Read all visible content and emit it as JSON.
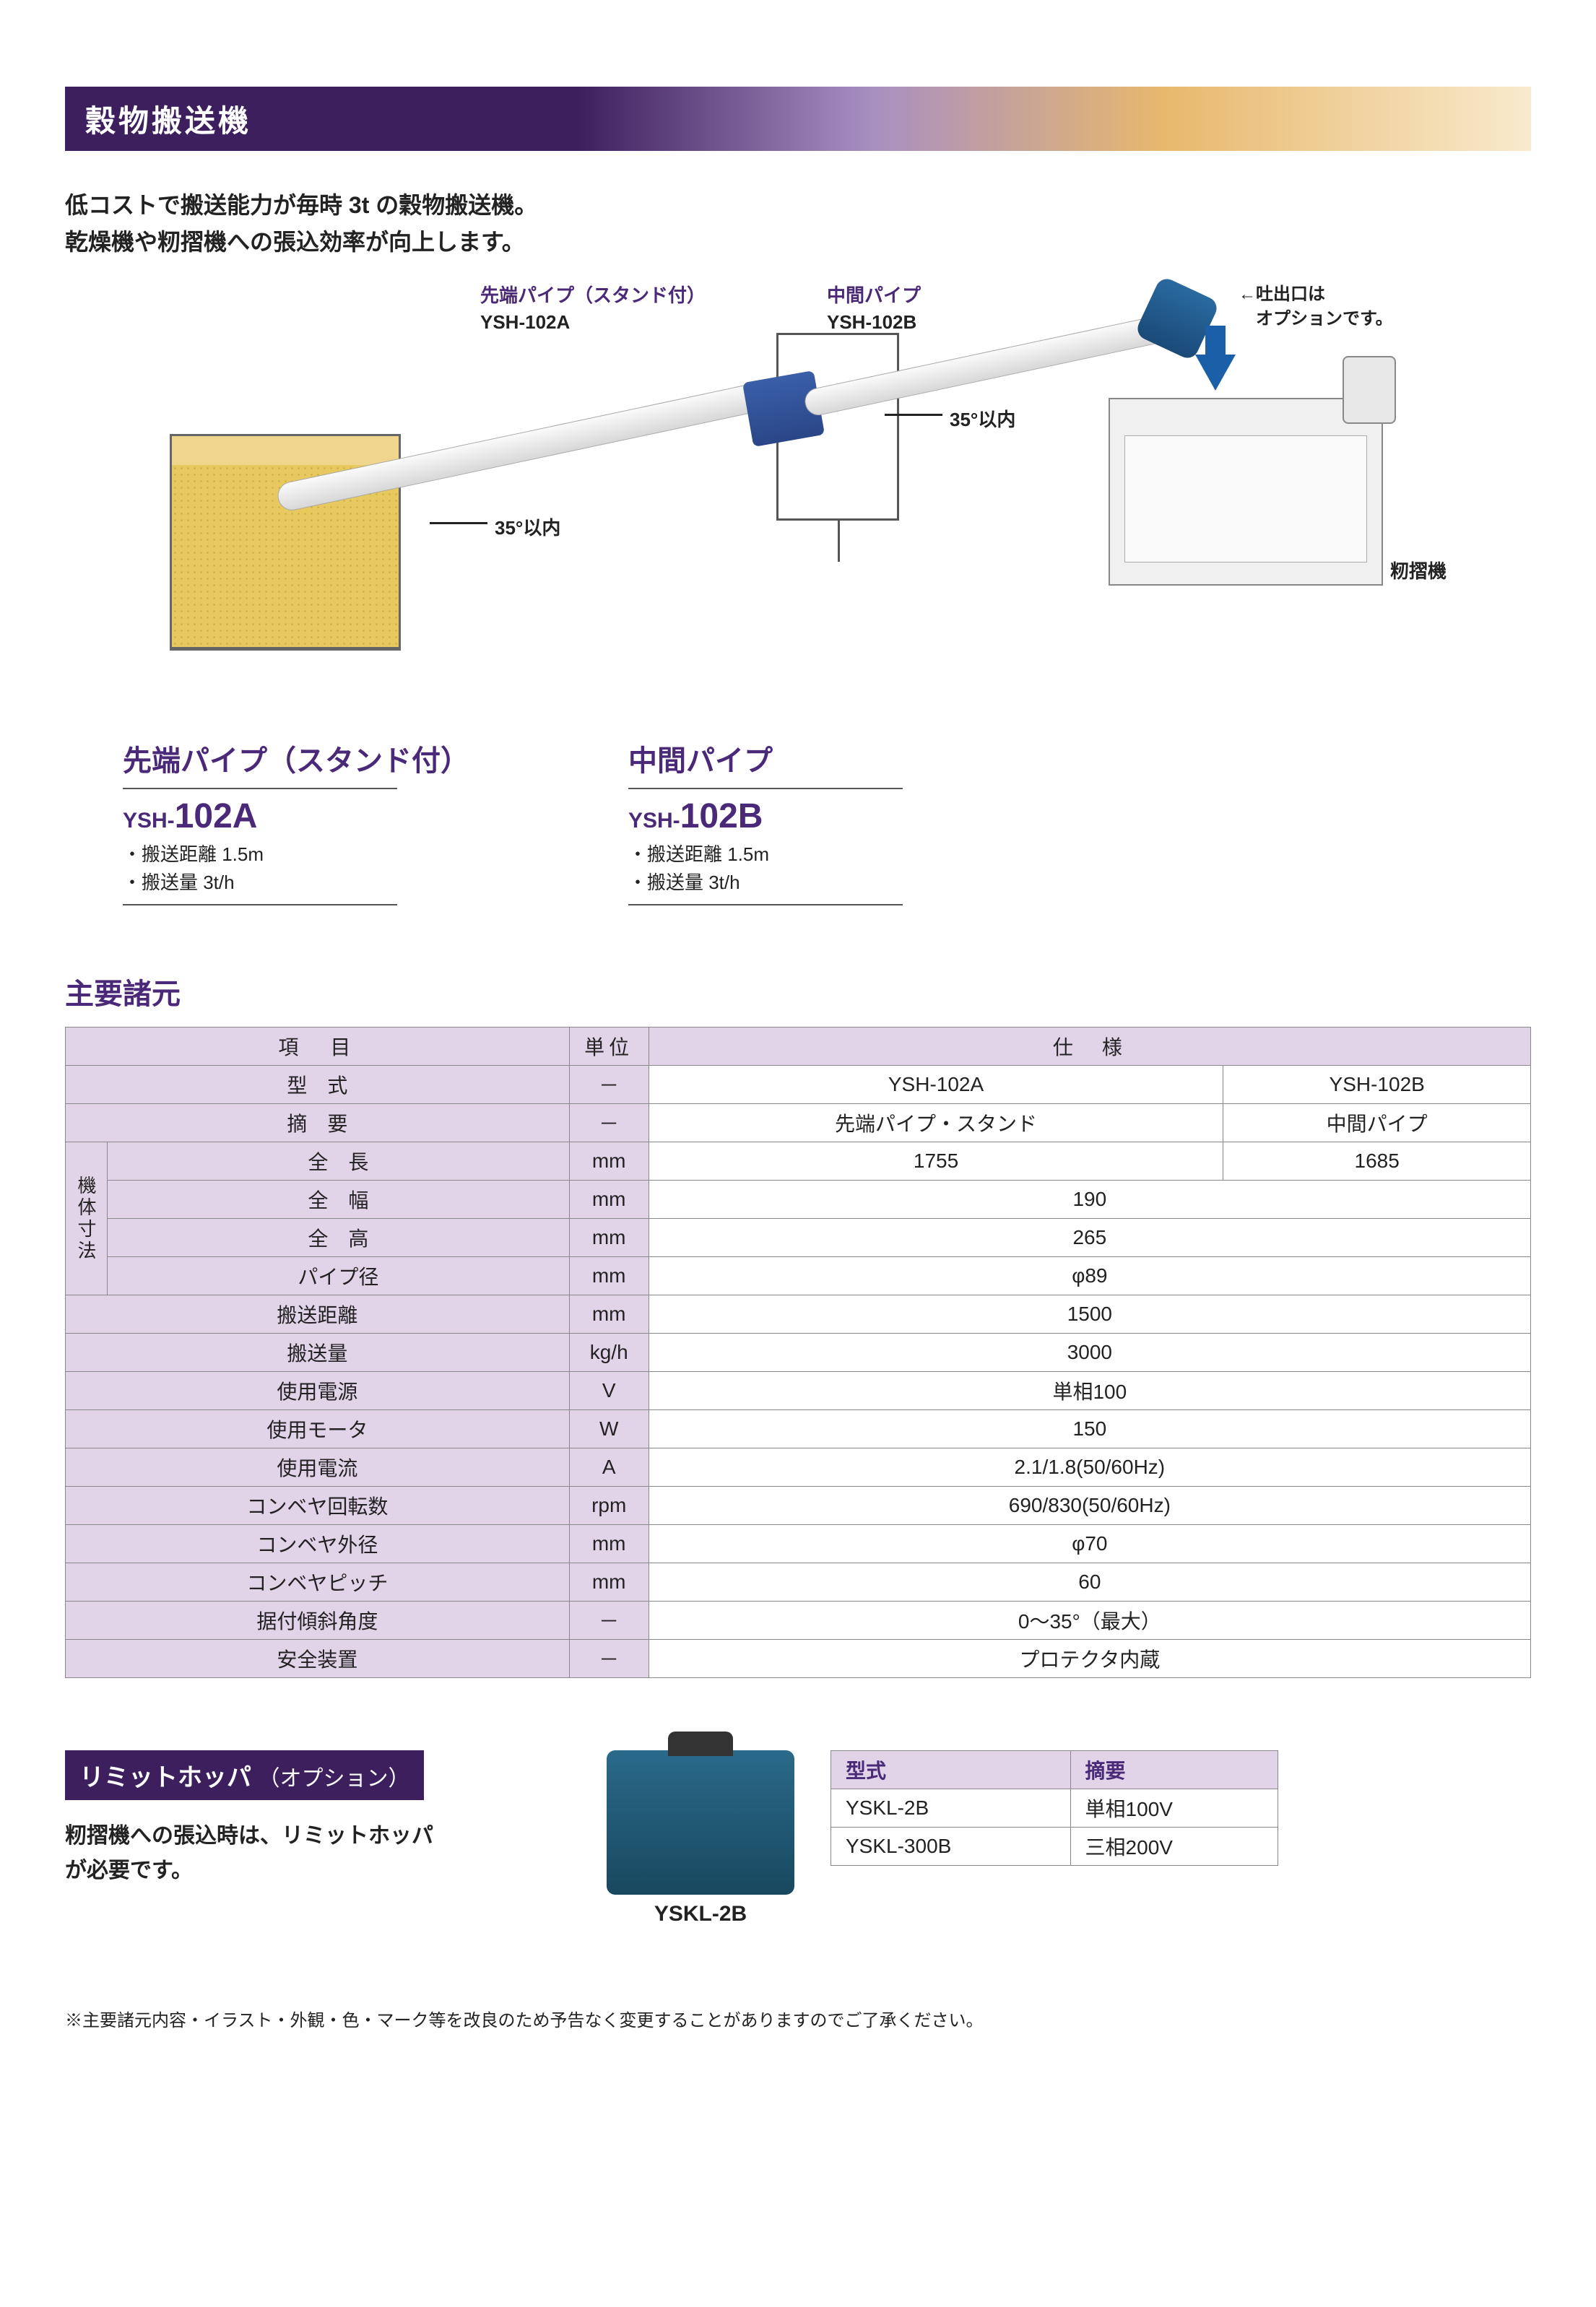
{
  "colors": {
    "brand_purple": "#3d1f5e",
    "text_purple": "#4a2a78",
    "header_gradient": [
      "#3d1f5e",
      "#a88fc2",
      "#e8b86d",
      "#f8eacc"
    ],
    "table_header_bg": "#e2d4e8",
    "border": "#888888",
    "machine_blue": "#1a5fa8",
    "grain": "#e8c95e"
  },
  "header": {
    "title": "穀物搬送機"
  },
  "intro": {
    "line1": "低コストで搬送能力が毎時 3t の穀物搬送機。",
    "line2": "乾燥機や籾摺機への張込効率が向上します。"
  },
  "diagram": {
    "label_a_title": "先端パイプ（スタンド付）",
    "label_a_model": "YSH-102A",
    "label_b_title": "中間パイプ",
    "label_b_model": "YSH-102B",
    "angle_a": "35°以内",
    "angle_b": "35°以内",
    "outlet_note1": "←吐出口は",
    "outlet_note2": "　オプションです。",
    "machine_label": "籾摺機"
  },
  "products": {
    "a": {
      "title": "先端パイプ（スタンド付）",
      "prefix": "YSH-",
      "model": "102A",
      "spec1": "・搬送距離 1.5m",
      "spec2": "・搬送量 3t/h"
    },
    "b": {
      "title": "中間パイプ",
      "prefix": "YSH-",
      "model": "102B",
      "spec1": "・搬送距離 1.5m",
      "spec2": "・搬送量 3t/h"
    }
  },
  "spec_section": {
    "title": "主要諸元"
  },
  "spec_table": {
    "head_item": "項　目",
    "head_unit": "単位",
    "head_spec": "仕　様",
    "dim_group": "機体寸法",
    "rows": {
      "model": {
        "label": "型　式",
        "unit": "－",
        "a": "YSH-102A",
        "b": "YSH-102B"
      },
      "desc": {
        "label": "摘　要",
        "unit": "－",
        "a": "先端パイプ・スタンド",
        "b": "中間パイプ"
      },
      "length": {
        "label": "全　長",
        "unit": "mm",
        "a": "1755",
        "b": "1685"
      },
      "width": {
        "label": "全　幅",
        "unit": "mm",
        "ab": "190"
      },
      "height": {
        "label": "全　高",
        "unit": "mm",
        "ab": "265"
      },
      "pipe_d": {
        "label": "パイプ径",
        "unit": "mm",
        "ab": "φ89"
      },
      "dist": {
        "label": "搬送距離",
        "unit": "mm",
        "ab": "1500"
      },
      "cap": {
        "label": "搬送量",
        "unit": "kg/h",
        "ab": "3000"
      },
      "power": {
        "label": "使用電源",
        "unit": "V",
        "ab": "単相100"
      },
      "motor": {
        "label": "使用モータ",
        "unit": "W",
        "ab": "150"
      },
      "current": {
        "label": "使用電流",
        "unit": "A",
        "ab": "2.1/1.8(50/60Hz)"
      },
      "rpm": {
        "label": "コンベヤ回転数",
        "unit": "rpm",
        "ab": "690/830(50/60Hz)"
      },
      "conv_d": {
        "label": "コンベヤ外径",
        "unit": "mm",
        "ab": "φ70"
      },
      "pitch": {
        "label": "コンベヤピッチ",
        "unit": "mm",
        "ab": "60"
      },
      "angle": {
        "label": "据付傾斜角度",
        "unit": "－",
        "ab": "0～35°（最大）"
      },
      "safety": {
        "label": "安全装置",
        "unit": "－",
        "ab": "プロテクタ内蔵"
      }
    }
  },
  "option": {
    "header_main": "リミットホッパ",
    "header_paren": "（オプション）",
    "text1": "籾摺機への張込時は、リミットホッパ",
    "text2": "が必要です。",
    "img_caption": "YSKL-2B",
    "table": {
      "h1": "型式",
      "h2": "摘要",
      "r1c1": "YSKL-2B",
      "r1c2": "単相100V",
      "r2c1": "YSKL-300B",
      "r2c2": "三相200V"
    }
  },
  "footnote": "※主要諸元内容・イラスト・外観・色・マーク等を改良のため予告なく変更することがありますのでご了承ください。"
}
